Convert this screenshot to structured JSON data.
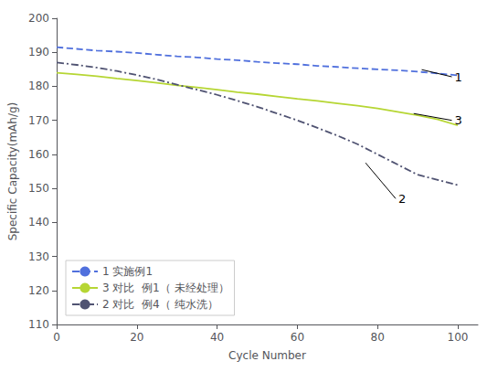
{
  "chart_data": {
    "type": "line",
    "xlabel": "Cycle Number",
    "ylabel": "Specific Capacity(mAh/g)",
    "x": [
      0,
      5,
      10,
      15,
      20,
      25,
      30,
      35,
      40,
      45,
      50,
      55,
      60,
      65,
      70,
      75,
      80,
      85,
      90,
      95,
      100
    ],
    "series": [
      {
        "name": "1 实施例1",
        "line_style": "dashed",
        "values": [
          191.5,
          191.0,
          190.5,
          190.2,
          189.8,
          189.3,
          188.8,
          188.5,
          188.0,
          187.7,
          187.2,
          186.8,
          186.5,
          186.0,
          185.7,
          185.3,
          185.0,
          184.7,
          184.3,
          183.8,
          183.2
        ]
      },
      {
        "name": "3 对比  例1（ 未经处理）",
        "line_style": "solid",
        "values": [
          184.0,
          183.5,
          183.0,
          182.3,
          181.7,
          181.0,
          180.3,
          179.7,
          179.0,
          178.3,
          177.7,
          177.0,
          176.3,
          175.7,
          175.0,
          174.3,
          173.5,
          172.5,
          171.5,
          170.3,
          168.5
        ]
      },
      {
        "name": "2 对比  例4（ 纯水洗）",
        "line_style": "dashdot",
        "values": [
          187.0,
          186.3,
          185.5,
          184.5,
          183.3,
          182.0,
          180.5,
          179.0,
          177.5,
          175.8,
          174.0,
          172.0,
          170.0,
          167.8,
          165.5,
          163.0,
          160.0,
          157.0,
          154.0,
          152.5,
          151.0
        ]
      }
    ],
    "annotations": [
      {
        "text": "1",
        "xy": [
          91.0,
          184.9
        ],
        "xytext": [
          98.5,
          182.8
        ],
        "color": "#000000"
      },
      {
        "text": "3",
        "xy": [
          89.0,
          172.0
        ],
        "xytext": [
          98.5,
          170.0
        ],
        "color": "#000000"
      },
      {
        "text": "2",
        "xy": [
          77.0,
          157.5
        ],
        "xytext": [
          84.5,
          147.0
        ],
        "color": "#000000"
      }
    ],
    "xlim": [
      0,
      105
    ],
    "ylim": [
      110,
      200
    ],
    "xticks": [
      0,
      20,
      40,
      60,
      80,
      100
    ],
    "yticks": [
      110,
      120,
      130,
      140,
      150,
      160,
      170,
      180,
      190,
      200
    ],
    "grid": false,
    "legend": "lower left"
  }
}
